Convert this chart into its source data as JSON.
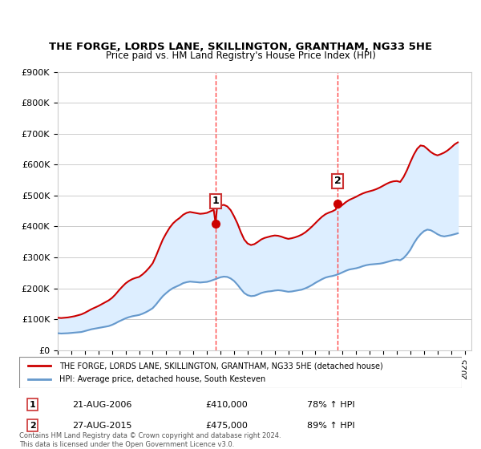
{
  "title": "THE FORGE, LORDS LANE, SKILLINGTON, GRANTHAM, NG33 5HE",
  "subtitle": "Price paid vs. HM Land Registry's House Price Index (HPI)",
  "ylabel_ticks": [
    "£0",
    "£100K",
    "£200K",
    "£300K",
    "£400K",
    "£500K",
    "£600K",
    "£700K",
    "£800K",
    "£900K"
  ],
  "ytick_values": [
    0,
    100000,
    200000,
    300000,
    400000,
    500000,
    600000,
    700000,
    800000,
    900000
  ],
  "ylim": [
    0,
    900000
  ],
  "xlim_start": 1995.0,
  "xlim_end": 2025.5,
  "sale1_x": 2006.64,
  "sale1_y": 410000,
  "sale1_label": "1",
  "sale1_date": "21-AUG-2006",
  "sale1_price": "£410,000",
  "sale1_pct": "78% ↑ HPI",
  "sale2_x": 2015.65,
  "sale2_y": 475000,
  "sale2_label": "2",
  "sale2_date": "27-AUG-2015",
  "sale2_price": "£475,000",
  "sale2_pct": "89% ↑ HPI",
  "line1_color": "#cc0000",
  "line2_color": "#6699cc",
  "fill_color": "#ddeeff",
  "dashed_color": "#ff4444",
  "background_color": "#ffffff",
  "grid_color": "#cccccc",
  "legend_line1": "THE FORGE, LORDS LANE, SKILLINGTON, GRANTHAM, NG33 5HE (detached house)",
  "legend_line2": "HPI: Average price, detached house, South Kesteven",
  "footnote": "Contains HM Land Registry data © Crown copyright and database right 2024.\nThis data is licensed under the Open Government Licence v3.0.",
  "hpi_data_x": [
    1995.0,
    1995.25,
    1995.5,
    1995.75,
    1996.0,
    1996.25,
    1996.5,
    1996.75,
    1997.0,
    1997.25,
    1997.5,
    1997.75,
    1998.0,
    1998.25,
    1998.5,
    1998.75,
    1999.0,
    1999.25,
    1999.5,
    1999.75,
    2000.0,
    2000.25,
    2000.5,
    2000.75,
    2001.0,
    2001.25,
    2001.5,
    2001.75,
    2002.0,
    2002.25,
    2002.5,
    2002.75,
    2003.0,
    2003.25,
    2003.5,
    2003.75,
    2004.0,
    2004.25,
    2004.5,
    2004.75,
    2005.0,
    2005.25,
    2005.5,
    2005.75,
    2006.0,
    2006.25,
    2006.5,
    2006.75,
    2007.0,
    2007.25,
    2007.5,
    2007.75,
    2008.0,
    2008.25,
    2008.5,
    2008.75,
    2009.0,
    2009.25,
    2009.5,
    2009.75,
    2010.0,
    2010.25,
    2010.5,
    2010.75,
    2011.0,
    2011.25,
    2011.5,
    2011.75,
    2012.0,
    2012.25,
    2012.5,
    2012.75,
    2013.0,
    2013.25,
    2013.5,
    2013.75,
    2014.0,
    2014.25,
    2014.5,
    2014.75,
    2015.0,
    2015.25,
    2015.5,
    2015.75,
    2016.0,
    2016.25,
    2016.5,
    2016.75,
    2017.0,
    2017.25,
    2017.5,
    2017.75,
    2018.0,
    2018.25,
    2018.5,
    2018.75,
    2019.0,
    2019.25,
    2019.5,
    2019.75,
    2020.0,
    2020.25,
    2020.5,
    2020.75,
    2021.0,
    2021.25,
    2021.5,
    2021.75,
    2022.0,
    2022.25,
    2022.5,
    2022.75,
    2023.0,
    2023.25,
    2023.5,
    2023.75,
    2024.0,
    2024.25,
    2024.5
  ],
  "hpi_data_y": [
    55000,
    54000,
    54500,
    55000,
    56000,
    57000,
    58000,
    59000,
    62000,
    65000,
    68000,
    70000,
    72000,
    74000,
    76000,
    78000,
    82000,
    87000,
    93000,
    98000,
    103000,
    107000,
    110000,
    112000,
    114000,
    118000,
    123000,
    129000,
    136000,
    148000,
    162000,
    175000,
    185000,
    194000,
    201000,
    206000,
    211000,
    217000,
    220000,
    222000,
    221000,
    220000,
    219000,
    220000,
    221000,
    224000,
    228000,
    232000,
    236000,
    238000,
    237000,
    232000,
    224000,
    212000,
    198000,
    185000,
    178000,
    175000,
    176000,
    180000,
    185000,
    188000,
    190000,
    191000,
    193000,
    194000,
    193000,
    191000,
    189000,
    190000,
    192000,
    194000,
    196000,
    200000,
    205000,
    211000,
    218000,
    224000,
    230000,
    235000,
    238000,
    240000,
    243000,
    247000,
    252000,
    257000,
    261000,
    263000,
    265000,
    268000,
    272000,
    275000,
    277000,
    278000,
    279000,
    280000,
    282000,
    285000,
    288000,
    291000,
    293000,
    291000,
    298000,
    310000,
    325000,
    345000,
    362000,
    375000,
    385000,
    390000,
    388000,
    382000,
    375000,
    370000,
    368000,
    370000,
    372000,
    375000,
    378000
  ],
  "price_data_x": [
    1995.0,
    1995.25,
    1995.5,
    1995.75,
    1996.0,
    1996.25,
    1996.5,
    1996.75,
    1997.0,
    1997.25,
    1997.5,
    1997.75,
    1998.0,
    1998.25,
    1998.5,
    1998.75,
    1999.0,
    1999.25,
    1999.5,
    1999.75,
    2000.0,
    2000.25,
    2000.5,
    2000.75,
    2001.0,
    2001.25,
    2001.5,
    2001.75,
    2002.0,
    2002.25,
    2002.5,
    2002.75,
    2003.0,
    2003.25,
    2003.5,
    2003.75,
    2004.0,
    2004.25,
    2004.5,
    2004.75,
    2005.0,
    2005.25,
    2005.5,
    2005.75,
    2006.0,
    2006.25,
    2006.5,
    2006.64,
    2006.75,
    2007.0,
    2007.25,
    2007.5,
    2007.75,
    2008.0,
    2008.25,
    2008.5,
    2008.75,
    2009.0,
    2009.25,
    2009.5,
    2009.75,
    2010.0,
    2010.25,
    2010.5,
    2010.75,
    2011.0,
    2011.25,
    2011.5,
    2011.75,
    2012.0,
    2012.25,
    2012.5,
    2012.75,
    2013.0,
    2013.25,
    2013.5,
    2013.75,
    2014.0,
    2014.25,
    2014.5,
    2014.75,
    2015.0,
    2015.25,
    2015.5,
    2015.65,
    2015.75,
    2016.0,
    2016.25,
    2016.5,
    2016.75,
    2017.0,
    2017.25,
    2017.5,
    2017.75,
    2018.0,
    2018.25,
    2018.5,
    2018.75,
    2019.0,
    2019.25,
    2019.5,
    2019.75,
    2020.0,
    2020.25,
    2020.5,
    2020.75,
    2021.0,
    2021.25,
    2021.5,
    2021.75,
    2022.0,
    2022.25,
    2022.5,
    2022.75,
    2023.0,
    2023.25,
    2023.5,
    2023.75,
    2024.0,
    2024.25,
    2024.5
  ],
  "price_data_y": [
    105000,
    104000,
    105000,
    106000,
    108000,
    110000,
    113000,
    116000,
    121000,
    127000,
    133000,
    138000,
    143000,
    149000,
    155000,
    161000,
    169000,
    180000,
    193000,
    205000,
    216000,
    224000,
    230000,
    234000,
    237000,
    245000,
    255000,
    267000,
    281000,
    305000,
    332000,
    358000,
    378000,
    396000,
    410000,
    420000,
    428000,
    438000,
    444000,
    447000,
    445000,
    443000,
    441000,
    442000,
    444000,
    449000,
    454000,
    410000,
    462000,
    468000,
    470000,
    465000,
    453000,
    433000,
    410000,
    382000,
    358000,
    345000,
    340000,
    343000,
    350000,
    358000,
    363000,
    366000,
    369000,
    371000,
    370000,
    367000,
    363000,
    360000,
    362000,
    365000,
    369000,
    374000,
    381000,
    390000,
    400000,
    411000,
    422000,
    432000,
    440000,
    445000,
    449000,
    455000,
    475000,
    462000,
    470000,
    479000,
    486000,
    491000,
    496000,
    502000,
    507000,
    511000,
    514000,
    517000,
    521000,
    526000,
    532000,
    538000,
    543000,
    546000,
    547000,
    544000,
    560000,
    582000,
    608000,
    632000,
    651000,
    662000,
    660000,
    651000,
    641000,
    634000,
    630000,
    634000,
    639000,
    646000,
    655000,
    665000,
    672000
  ]
}
